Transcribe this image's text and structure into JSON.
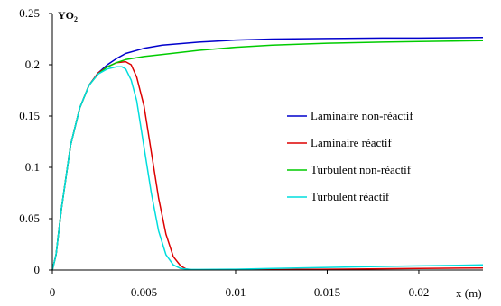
{
  "chart_data": {
    "type": "line",
    "ylabel_main": "YO",
    "ylabel_sub": "2",
    "xlabel": "x (m)",
    "xlim": [
      0,
      0.0235
    ],
    "ylim": [
      0,
      0.25
    ],
    "grid": false,
    "legend_position": "right",
    "x_ticks": [
      0,
      0.005,
      0.01,
      0.015,
      0.02
    ],
    "x_tick_labels": [
      "0",
      "0.005",
      "0.01",
      "0.015",
      "0.02"
    ],
    "y_ticks": [
      0,
      0.05,
      0.1,
      0.15,
      0.2,
      0.25
    ],
    "y_tick_labels": [
      "0",
      "0.05",
      "0.1",
      "0.15",
      "0.2",
      "0.25"
    ],
    "series": [
      {
        "name": "Laminaire non-réactif",
        "color": "#0000cc",
        "x": [
          0,
          0.0002,
          0.0005,
          0.001,
          0.0015,
          0.002,
          0.0025,
          0.003,
          0.0035,
          0.004,
          0.005,
          0.006,
          0.008,
          0.01,
          0.012,
          0.015,
          0.018,
          0.02,
          0.0235
        ],
        "y": [
          0,
          0.015,
          0.06,
          0.122,
          0.158,
          0.18,
          0.192,
          0.2,
          0.206,
          0.211,
          0.216,
          0.219,
          0.222,
          0.224,
          0.225,
          0.2255,
          0.226,
          0.226,
          0.2265
        ]
      },
      {
        "name": "Laminaire réactif",
        "color": "#dd0000",
        "x": [
          0,
          0.0002,
          0.0005,
          0.001,
          0.0015,
          0.002,
          0.0025,
          0.003,
          0.0035,
          0.004,
          0.0043,
          0.0046,
          0.005,
          0.0054,
          0.0058,
          0.0062,
          0.0066,
          0.007,
          0.0073,
          0.0076,
          0.008,
          0.01,
          0.015,
          0.02,
          0.0235
        ],
        "y": [
          0,
          0.015,
          0.06,
          0.122,
          0.158,
          0.18,
          0.192,
          0.198,
          0.202,
          0.203,
          0.2,
          0.188,
          0.16,
          0.115,
          0.07,
          0.035,
          0.013,
          0.004,
          0.001,
          0.0003,
          0.0002,
          0.0003,
          0.0008,
          0.0015,
          0.002
        ]
      },
      {
        "name": "Turbulent non-réactif",
        "color": "#00cc00",
        "x": [
          0,
          0.0002,
          0.0005,
          0.001,
          0.0015,
          0.002,
          0.0025,
          0.003,
          0.0035,
          0.004,
          0.005,
          0.006,
          0.008,
          0.01,
          0.012,
          0.015,
          0.018,
          0.02,
          0.0235
        ],
        "y": [
          0,
          0.015,
          0.06,
          0.122,
          0.158,
          0.18,
          0.191,
          0.198,
          0.202,
          0.205,
          0.208,
          0.21,
          0.214,
          0.217,
          0.219,
          0.221,
          0.222,
          0.2225,
          0.2235
        ]
      },
      {
        "name": "Turbulent réactif",
        "color": "#00dddd",
        "x": [
          0,
          0.0002,
          0.0005,
          0.001,
          0.0015,
          0.002,
          0.0025,
          0.003,
          0.0035,
          0.0038,
          0.004,
          0.0043,
          0.0046,
          0.005,
          0.0054,
          0.0058,
          0.0062,
          0.0066,
          0.007,
          0.0075,
          0.008,
          0.01,
          0.012,
          0.015,
          0.018,
          0.02,
          0.0235
        ],
        "y": [
          0,
          0.015,
          0.06,
          0.122,
          0.158,
          0.18,
          0.191,
          0.196,
          0.198,
          0.198,
          0.196,
          0.185,
          0.165,
          0.12,
          0.075,
          0.038,
          0.015,
          0.005,
          0.0015,
          0.0006,
          0.0005,
          0.0008,
          0.0015,
          0.0025,
          0.0035,
          0.004,
          0.005
        ]
      }
    ]
  }
}
